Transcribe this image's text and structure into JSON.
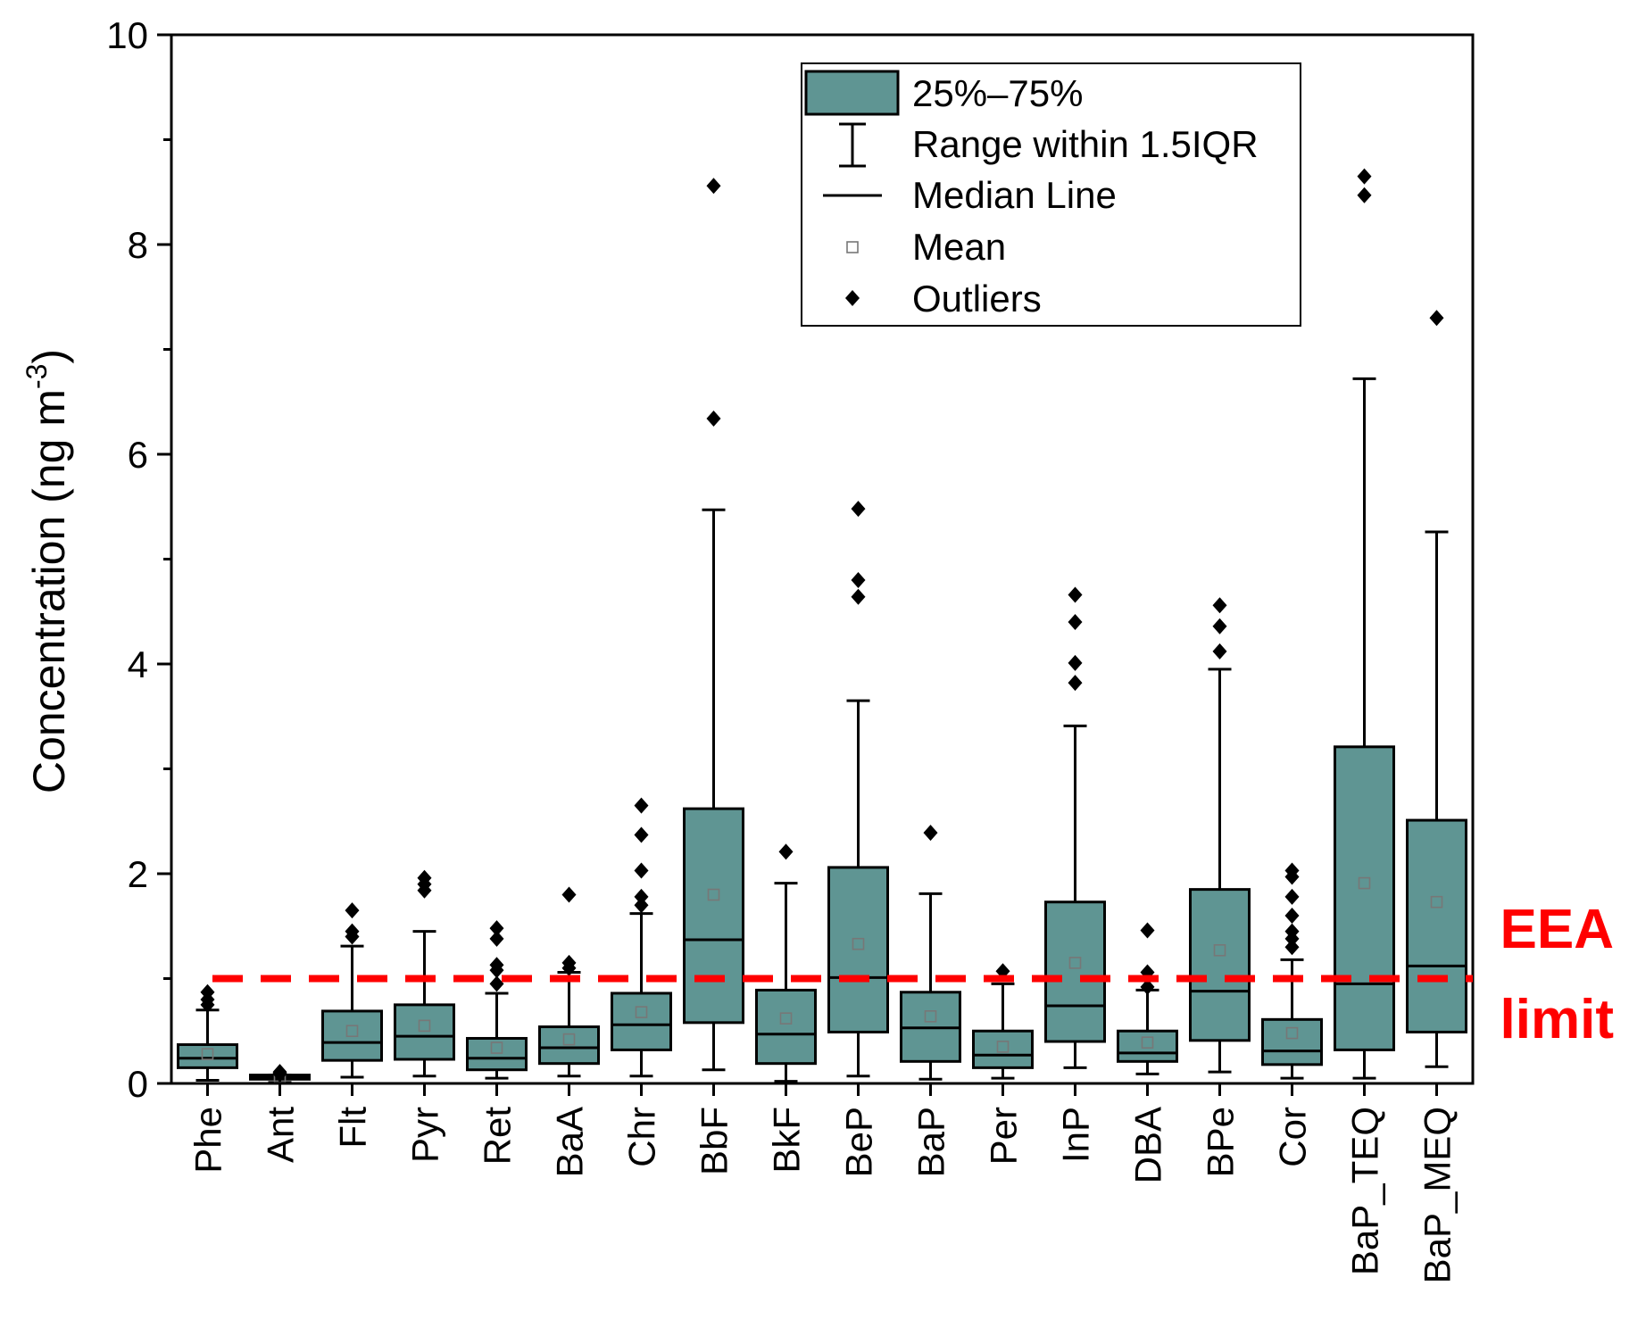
{
  "chart_data": {
    "type": "box",
    "ylabel": "Concentration (ng m",
    "ylabel_sup": "-3",
    "ylabel_close": ")",
    "ylim": [
      0,
      10
    ],
    "yticks": [
      0,
      2,
      4,
      6,
      8,
      10
    ],
    "grid": false,
    "legend_position": "top-right",
    "colors": {
      "box": "#5f9593",
      "threshold": "#ff0000",
      "mean_marker": "#777777"
    },
    "legend": {
      "box": "25%–75%",
      "whisker": "Range within 1.5IQR",
      "median": "Median Line",
      "mean": "Mean",
      "outliers": "Outliers"
    },
    "threshold": {
      "value": 1.0,
      "label_line1": "EEA",
      "label_line2": "limit"
    },
    "categories": [
      "Phe",
      "Ant",
      "Flt",
      "Pyr",
      "Ret",
      "BaA",
      "Chr",
      "BbF",
      "BkF",
      "BeP",
      "BaP",
      "Per",
      "InP",
      "DBA",
      "BPe",
      "Cor",
      "BaP_TEQ",
      "BaP_MEQ"
    ],
    "boxes": [
      {
        "label": "Phe",
        "wlo": 0.03,
        "q1": 0.15,
        "median": 0.24,
        "q3": 0.37,
        "whi": 0.7,
        "mean": 0.28,
        "outliers": [
          0.75,
          0.8,
          0.87
        ]
      },
      {
        "label": "Ant",
        "wlo": 0.01,
        "q1": 0.04,
        "median": 0.06,
        "q3": 0.08,
        "whi": 0.08,
        "mean": 0.06,
        "outliers": [
          0.09,
          0.1,
          0.11
        ]
      },
      {
        "label": "Flt",
        "wlo": 0.06,
        "q1": 0.22,
        "median": 0.39,
        "q3": 0.69,
        "whi": 1.31,
        "mean": 0.5,
        "outliers": [
          1.4,
          1.45,
          1.65
        ]
      },
      {
        "label": "Pyr",
        "wlo": 0.07,
        "q1": 0.23,
        "median": 0.45,
        "q3": 0.75,
        "whi": 1.45,
        "mean": 0.55,
        "outliers": [
          1.84,
          1.9,
          1.96
        ]
      },
      {
        "label": "Ret",
        "wlo": 0.05,
        "q1": 0.13,
        "median": 0.24,
        "q3": 0.43,
        "whi": 0.86,
        "mean": 0.34,
        "outliers": [
          0.95,
          1.08,
          1.13,
          1.38,
          1.48
        ]
      },
      {
        "label": "BaA",
        "wlo": 0.07,
        "q1": 0.19,
        "median": 0.34,
        "q3": 0.54,
        "whi": 1.06,
        "mean": 0.42,
        "outliers": [
          1.1,
          1.15,
          1.8
        ]
      },
      {
        "label": "Chr",
        "wlo": 0.07,
        "q1": 0.32,
        "median": 0.56,
        "q3": 0.86,
        "whi": 1.62,
        "mean": 0.68,
        "outliers": [
          1.7,
          1.78,
          2.03,
          2.37,
          2.65
        ]
      },
      {
        "label": "BbF",
        "wlo": 0.13,
        "q1": 0.58,
        "median": 1.37,
        "q3": 2.62,
        "whi": 5.47,
        "mean": 1.8,
        "outliers": [
          6.34,
          8.56
        ]
      },
      {
        "label": "BkF",
        "wlo": 0.02,
        "q1": 0.19,
        "median": 0.47,
        "q3": 0.89,
        "whi": 1.91,
        "mean": 0.62,
        "outliers": [
          2.21
        ]
      },
      {
        "label": "BeP",
        "wlo": 0.07,
        "q1": 0.49,
        "median": 1.01,
        "q3": 2.06,
        "whi": 3.65,
        "mean": 1.33,
        "outliers": [
          4.64,
          4.8,
          5.48
        ]
      },
      {
        "label": "BaP",
        "wlo": 0.04,
        "q1": 0.21,
        "median": 0.53,
        "q3": 0.87,
        "whi": 1.81,
        "mean": 0.64,
        "outliers": [
          2.39
        ]
      },
      {
        "label": "Per",
        "wlo": 0.05,
        "q1": 0.15,
        "median": 0.27,
        "q3": 0.5,
        "whi": 0.95,
        "mean": 0.35,
        "outliers": [
          1.07
        ]
      },
      {
        "label": "InP",
        "wlo": 0.15,
        "q1": 0.4,
        "median": 0.74,
        "q3": 1.73,
        "whi": 3.41,
        "mean": 1.15,
        "outliers": [
          3.82,
          4.01,
          4.4,
          4.66
        ]
      },
      {
        "label": "DBA",
        "wlo": 0.09,
        "q1": 0.21,
        "median": 0.29,
        "q3": 0.5,
        "whi": 0.89,
        "mean": 0.39,
        "outliers": [
          0.92,
          1.06,
          1.46
        ]
      },
      {
        "label": "BPe",
        "wlo": 0.11,
        "q1": 0.41,
        "median": 0.88,
        "q3": 1.85,
        "whi": 3.95,
        "mean": 1.27,
        "outliers": [
          4.12,
          4.36,
          4.56
        ]
      },
      {
        "label": "Cor",
        "wlo": 0.05,
        "q1": 0.18,
        "median": 0.31,
        "q3": 0.61,
        "whi": 1.18,
        "mean": 0.48,
        "outliers": [
          1.3,
          1.38,
          1.45,
          1.6,
          1.78,
          1.97,
          2.03
        ]
      },
      {
        "label": "BaP_TEQ",
        "wlo": 0.05,
        "q1": 0.32,
        "median": 0.95,
        "q3": 3.21,
        "whi": 6.72,
        "mean": 1.91,
        "outliers": [
          8.47,
          8.65
        ]
      },
      {
        "label": "BaP_MEQ",
        "wlo": 0.16,
        "q1": 0.49,
        "median": 1.12,
        "q3": 2.51,
        "whi": 5.26,
        "mean": 1.73,
        "outliers": [
          7.3
        ]
      }
    ]
  }
}
